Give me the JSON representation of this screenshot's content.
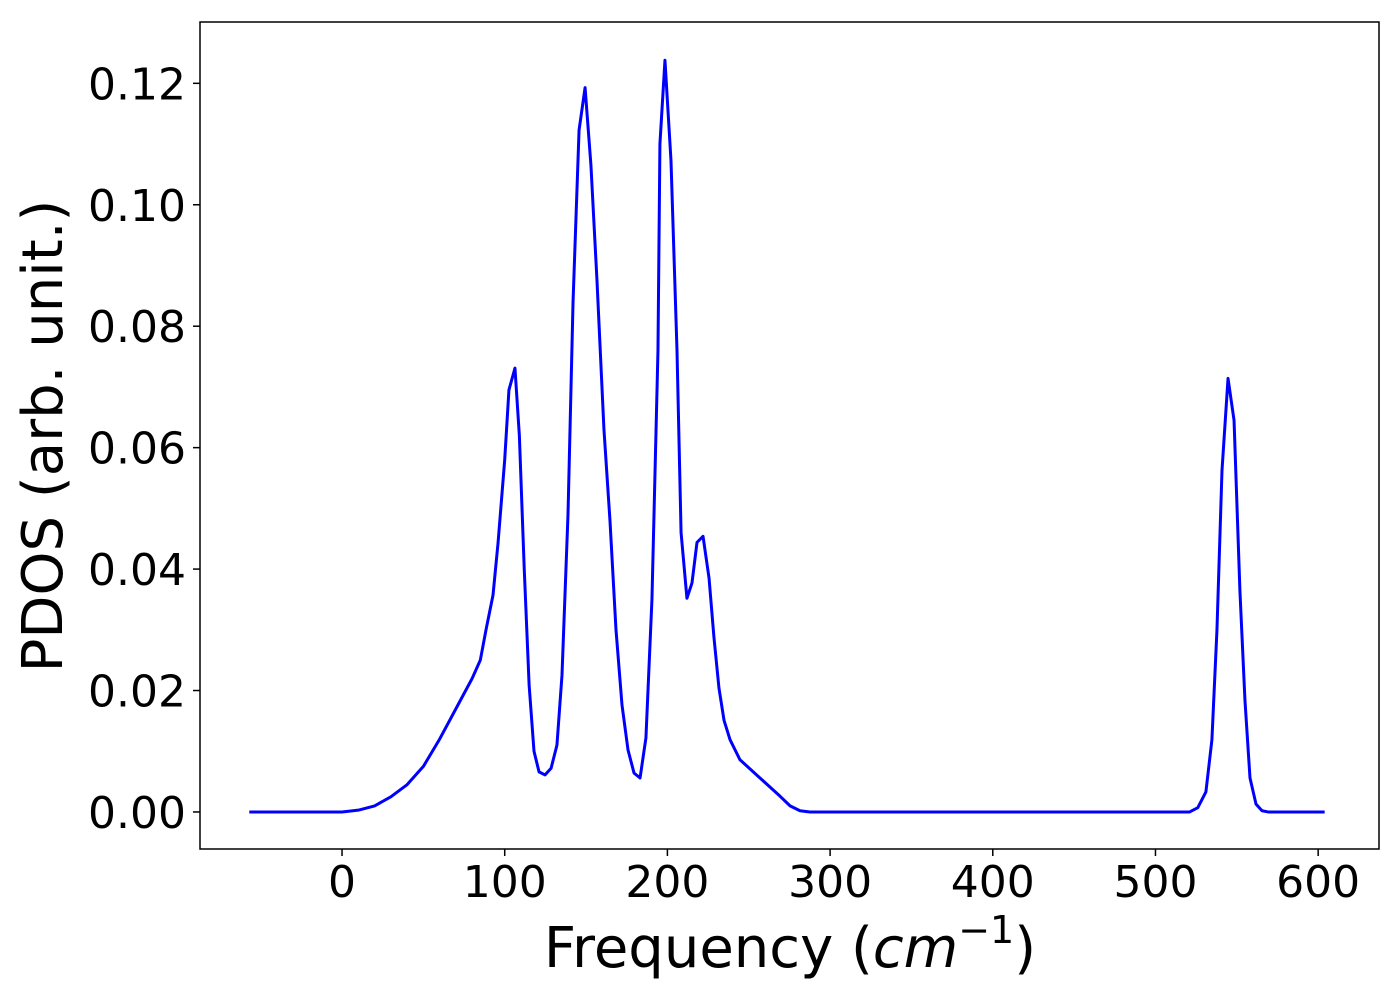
{
  "chart_data": {
    "type": "line",
    "xlabel": [
      "Frequency (",
      "cm",
      "−1",
      ")"
    ],
    "ylabel": "PDOS (arb. unit.)",
    "xlim": [
      -87.3,
      637.4
    ],
    "ylim": [
      -0.0061,
      0.1301
    ],
    "xticks": [
      0,
      100,
      200,
      300,
      400,
      500,
      600
    ],
    "yticks": [
      {
        "value": 0,
        "label": "0.00"
      },
      {
        "value": 0.02,
        "label": "0.02"
      },
      {
        "value": 0.04,
        "label": "0.04"
      },
      {
        "value": 0.06,
        "label": "0.06"
      },
      {
        "value": 0.08,
        "label": "0.08"
      },
      {
        "value": 0.1,
        "label": "0.10"
      },
      {
        "value": 0.12,
        "label": "0.12"
      }
    ],
    "grid": false,
    "series": [
      {
        "color": "#0000ff",
        "x": [
          -57,
          0,
          10,
          20,
          30,
          40,
          50,
          60,
          70,
          80,
          85,
          88.5,
          92.8,
          95.9,
          100,
          102.6,
          106.3,
          109,
          112,
          115,
          118,
          121.1,
          124.8,
          128.5,
          132.1,
          135.2,
          138.9,
          142,
          145.7,
          149.4,
          153,
          156.7,
          161,
          164.7,
          168.4,
          172.1,
          175.8,
          179.5,
          183.2,
          186.8,
          190.5,
          194.2,
          195.4,
          198.5,
          202.2,
          205.9,
          208.4,
          212,
          215.1,
          218.2,
          221.9,
          225.6,
          228.6,
          231.7,
          234.8,
          238.5,
          244.6,
          256.9,
          269.2,
          275.4,
          281.5,
          287.6,
          521,
          526,
          531,
          534.7,
          537.8,
          540.9,
          544.6,
          548.3,
          551.9,
          555,
          558.1,
          561.8,
          565.5,
          569.2,
          604
        ],
        "values": [
          0,
          0,
          0.0003,
          0.001,
          0.0025,
          0.0045,
          0.0075,
          0.012,
          0.017,
          0.022,
          0.025,
          0.03,
          0.0357,
          0.0443,
          0.058,
          0.0695,
          0.0731,
          0.062,
          0.04,
          0.0209,
          0.01,
          0.0066,
          0.0061,
          0.0072,
          0.011,
          0.0225,
          0.049,
          0.084,
          0.1123,
          0.1193,
          0.1065,
          0.0876,
          0.063,
          0.048,
          0.03,
          0.0176,
          0.0102,
          0.0064,
          0.0056,
          0.0122,
          0.035,
          0.076,
          0.11,
          0.1238,
          0.1073,
          0.076,
          0.046,
          0.0352,
          0.0377,
          0.0444,
          0.0454,
          0.0385,
          0.0288,
          0.0204,
          0.0151,
          0.0119,
          0.0086,
          0.0056,
          0.0026,
          0.001,
          0.0002,
          0,
          0,
          0.0007,
          0.0033,
          0.0119,
          0.03,
          0.0563,
          0.0714,
          0.0645,
          0.0365,
          0.0184,
          0.0056,
          0.0013,
          0.0002,
          0,
          0
        ]
      }
    ]
  }
}
